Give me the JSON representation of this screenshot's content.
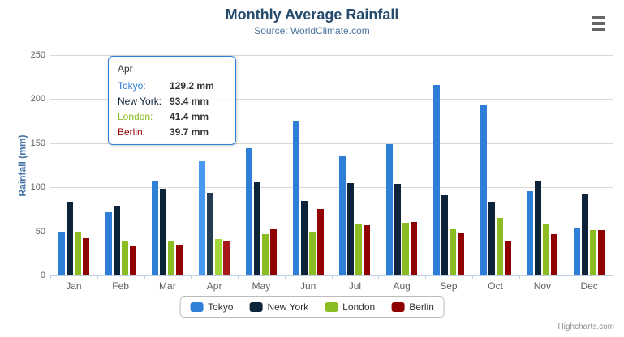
{
  "header": {
    "title": "Monthly Average Rainfall",
    "subtitle": "Source: WorldClimate.com"
  },
  "chart_data": {
    "type": "bar",
    "title": "Monthly Average Rainfall",
    "subtitle": "Source: WorldClimate.com",
    "categories": [
      "Jan",
      "Feb",
      "Mar",
      "Apr",
      "May",
      "Jun",
      "Jul",
      "Aug",
      "Sep",
      "Oct",
      "Nov",
      "Dec"
    ],
    "series": [
      {
        "name": "Tokyo",
        "color": "#2f7ed8",
        "hover_color": "#4897f1",
        "values": [
          49.9,
          71.5,
          106.4,
          129.2,
          144.0,
          176.0,
          135.6,
          148.5,
          216.4,
          194.1,
          95.6,
          54.4
        ]
      },
      {
        "name": "New York",
        "color": "#0d233a",
        "hover_color": "#263c53",
        "values": [
          83.6,
          78.8,
          98.5,
          93.4,
          106.0,
          84.5,
          105.0,
          104.3,
          91.2,
          83.5,
          106.6,
          92.3
        ]
      },
      {
        "name": "London",
        "color": "#8bbc21",
        "hover_color": "#a4d53a",
        "values": [
          48.9,
          38.8,
          39.3,
          41.4,
          47.0,
          48.3,
          59.0,
          59.6,
          52.4,
          65.2,
          59.3,
          51.2
        ]
      },
      {
        "name": "Berlin",
        "color": "#910000",
        "hover_color": "#aa1919",
        "values": [
          42.4,
          33.2,
          34.5,
          39.7,
          52.6,
          75.5,
          57.4,
          60.4,
          47.6,
          39.1,
          46.8,
          51.1
        ]
      }
    ],
    "xlabel": "",
    "ylabel": "Rainfall (mm)",
    "ylim": [
      0,
      250
    ],
    "yticks": [
      0,
      50,
      100,
      150,
      200,
      250
    ],
    "grid": true,
    "legend_position": "bottom",
    "hovered_category": "Apr",
    "value_unit": "mm"
  },
  "tooltip": {
    "header": "Apr",
    "border_color": "#2f7ed8",
    "rows": [
      {
        "label": "Tokyo:",
        "color": "#2f7ed8",
        "value": "129.2 mm"
      },
      {
        "label": "New York:",
        "color": "#0d233a",
        "value": "93.4 mm"
      },
      {
        "label": "London:",
        "color": "#8bbc21",
        "value": "41.4 mm"
      },
      {
        "label": "Berlin:",
        "color": "#910000",
        "value": "39.7 mm"
      }
    ]
  },
  "colors": {
    "title": "#274b6d",
    "subtitle": "#4d759e",
    "axis_title": "#4572a7",
    "axis_label": "#606060",
    "gridline": "#d8d8d8",
    "axis_line": "#c0d0e0"
  },
  "icons": {
    "export_menu": "hamburger-menu-icon"
  },
  "credits": {
    "label": "Highcharts.com"
  }
}
